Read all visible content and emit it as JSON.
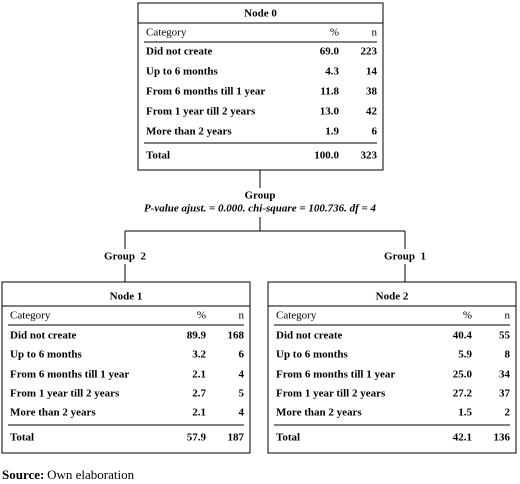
{
  "nodes": [
    {
      "title": "Node 0",
      "columns": [
        "Category",
        "%",
        "n"
      ],
      "rows": [
        [
          "Did not create",
          "69.0",
          "223"
        ],
        [
          "Up to 6 months",
          "4.3",
          "14"
        ],
        [
          "From 6 months till 1 year",
          "11.8",
          "38"
        ],
        [
          "From 1 year till 2 years",
          "13.0",
          "42"
        ],
        [
          "More than 2 years",
          "1.9",
          "6"
        ]
      ],
      "total": [
        "Total",
        "100.0",
        "323"
      ]
    },
    {
      "title": "Node 1",
      "columns": [
        "Category",
        "%",
        "n"
      ],
      "rows": [
        [
          "Did not create",
          "89.9",
          "168"
        ],
        [
          "Up to 6 months",
          "3.2",
          "6"
        ],
        [
          "From 6 months till 1 year",
          "2.1",
          "4"
        ],
        [
          "From 1 year till 2 years",
          "2.7",
          "5"
        ],
        [
          "More than 2 years",
          "2.1",
          "4"
        ]
      ],
      "total": [
        "Total",
        "57.9",
        "187"
      ]
    },
    {
      "title": "Node 2",
      "columns": [
        "Category",
        "%",
        "n"
      ],
      "rows": [
        [
          "Did not create",
          "40.4",
          "55"
        ],
        [
          "Up to 6 months",
          "5.9",
          "8"
        ],
        [
          "From 6 months till 1 year",
          "25.0",
          "34"
        ],
        [
          "From 1 year till 2 years",
          "27.2",
          "37"
        ],
        [
          "More than 2 years",
          "1.5",
          "2"
        ]
      ],
      "total": [
        "Total",
        "42.1",
        "136"
      ]
    }
  ],
  "split": {
    "variable": "Group",
    "stats": "P-value ajust. = 0.000.  chi-square = 100.736.  df = 4"
  },
  "branches": [
    "Group  2",
    "Group  1"
  ],
  "source": {
    "label": "Source:",
    "text": "Own elaboration"
  }
}
